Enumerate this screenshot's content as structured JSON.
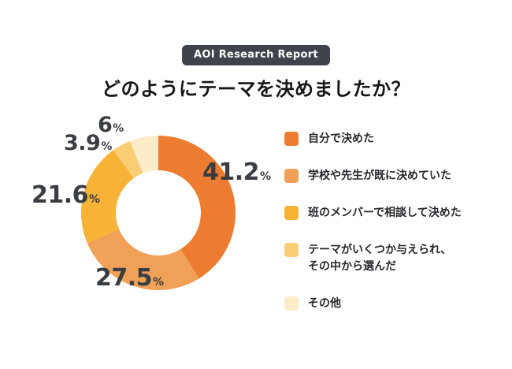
{
  "badge": {
    "label": "AOI Research Report"
  },
  "title": "どのようにテーマを決めましたか？",
  "chart_data": {
    "type": "pie",
    "variant": "donut",
    "title": "どのようにテーマを決めましたか？",
    "unit": "%",
    "start_angle_deg": 0,
    "direction": "clockwise",
    "legend_position": "right",
    "segments": [
      {
        "label": "自分で決めた",
        "value": 41.2,
        "display": "41.2",
        "color": "#EC7C2F"
      },
      {
        "label": "学校や先生が既に決めていた",
        "value": 27.5,
        "display": "27.5",
        "color": "#F0A057"
      },
      {
        "label": "班のメンバーで相談して決めた",
        "value": 21.6,
        "display": "21.6",
        "color": "#F6B338"
      },
      {
        "label": "テーマがいくつか与えられ、\nその中から選んだ",
        "value": 3.9,
        "display": "3.9",
        "color": "#F8CD74"
      },
      {
        "label": "その他",
        "value": 6,
        "display": "6",
        "color": "#FCEDC8"
      }
    ]
  }
}
